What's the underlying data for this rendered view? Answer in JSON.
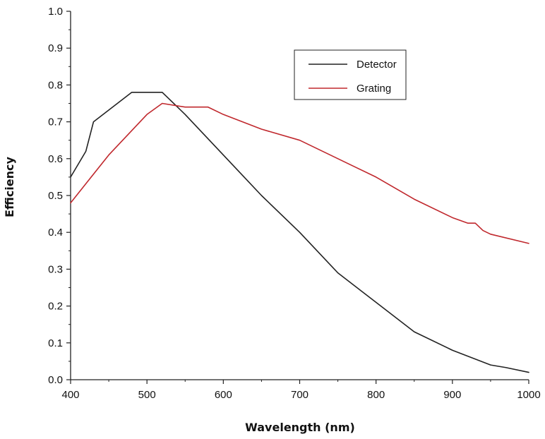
{
  "chart_data": {
    "type": "line",
    "title": "",
    "xlabel": "Wavelength (nm)",
    "ylabel": "Efficiency",
    "xlim": [
      400,
      1000
    ],
    "ylim": [
      0.0,
      1.0
    ],
    "grid": false,
    "legend_position": "top-right",
    "x_ticks": [
      "400",
      "500",
      "600",
      "700",
      "800",
      "900",
      "1000"
    ],
    "y_ticks": [
      "0.0",
      "0.1",
      "0.2",
      "0.3",
      "0.4",
      "0.5",
      "0.6",
      "0.7",
      "0.8",
      "0.9",
      "1.0"
    ],
    "series": [
      {
        "name": "Detector",
        "color": "#222222",
        "x": [
          400,
          420,
          430,
          480,
          520,
          550,
          600,
          650,
          700,
          750,
          800,
          850,
          900,
          950,
          970,
          1000
        ],
        "y": [
          0.55,
          0.62,
          0.7,
          0.78,
          0.78,
          0.72,
          0.61,
          0.5,
          0.4,
          0.29,
          0.21,
          0.13,
          0.08,
          0.04,
          0.033,
          0.02
        ]
      },
      {
        "name": "Grating",
        "color": "#c0282d",
        "x": [
          400,
          450,
          500,
          520,
          550,
          580,
          600,
          650,
          700,
          750,
          800,
          850,
          900,
          920,
          930,
          940,
          950,
          1000
        ],
        "y": [
          0.48,
          0.61,
          0.72,
          0.75,
          0.74,
          0.74,
          0.72,
          0.68,
          0.65,
          0.6,
          0.55,
          0.49,
          0.44,
          0.425,
          0.425,
          0.405,
          0.395,
          0.37
        ]
      }
    ]
  }
}
